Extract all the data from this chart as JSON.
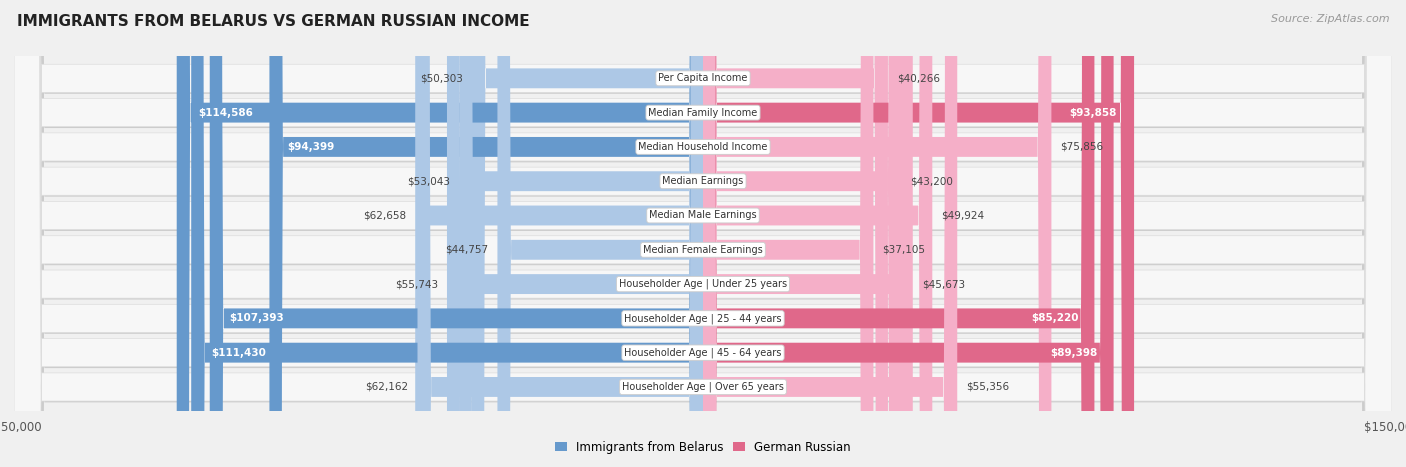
{
  "title": "IMMIGRANTS FROM BELARUS VS GERMAN RUSSIAN INCOME",
  "source": "Source: ZipAtlas.com",
  "categories": [
    "Per Capita Income",
    "Median Family Income",
    "Median Household Income",
    "Median Earnings",
    "Median Male Earnings",
    "Median Female Earnings",
    "Householder Age | Under 25 years",
    "Householder Age | 25 - 44 years",
    "Householder Age | 45 - 64 years",
    "Householder Age | Over 65 years"
  ],
  "belarus_values": [
    50303,
    114586,
    94399,
    53043,
    62658,
    44757,
    55743,
    107393,
    111430,
    62162
  ],
  "german_russian_values": [
    40266,
    93858,
    75856,
    43200,
    49924,
    37105,
    45673,
    85220,
    89398,
    55356
  ],
  "belarus_labels": [
    "$50,303",
    "$114,586",
    "$94,399",
    "$53,043",
    "$62,658",
    "$44,757",
    "$55,743",
    "$107,393",
    "$111,430",
    "$62,162"
  ],
  "german_russian_labels": [
    "$40,266",
    "$93,858",
    "$75,856",
    "$43,200",
    "$49,924",
    "$37,105",
    "$45,673",
    "$85,220",
    "$89,398",
    "$55,356"
  ],
  "belarus_color_light": "#adc8e6",
  "belarus_color_dark": "#6699cc",
  "german_russian_color_light": "#f5afc8",
  "german_russian_color_dark": "#e0688a",
  "max_value": 150000,
  "label_threshold": 80000,
  "background_color": "#f0f0f0",
  "row_fill": "#f7f7f7",
  "row_edge": "#dddddd",
  "label_box_color": "#ffffff",
  "label_box_edge": "#cccccc",
  "title_fontsize": 11,
  "source_fontsize": 8,
  "bar_label_fontsize": 7.5,
  "cat_label_fontsize": 7
}
